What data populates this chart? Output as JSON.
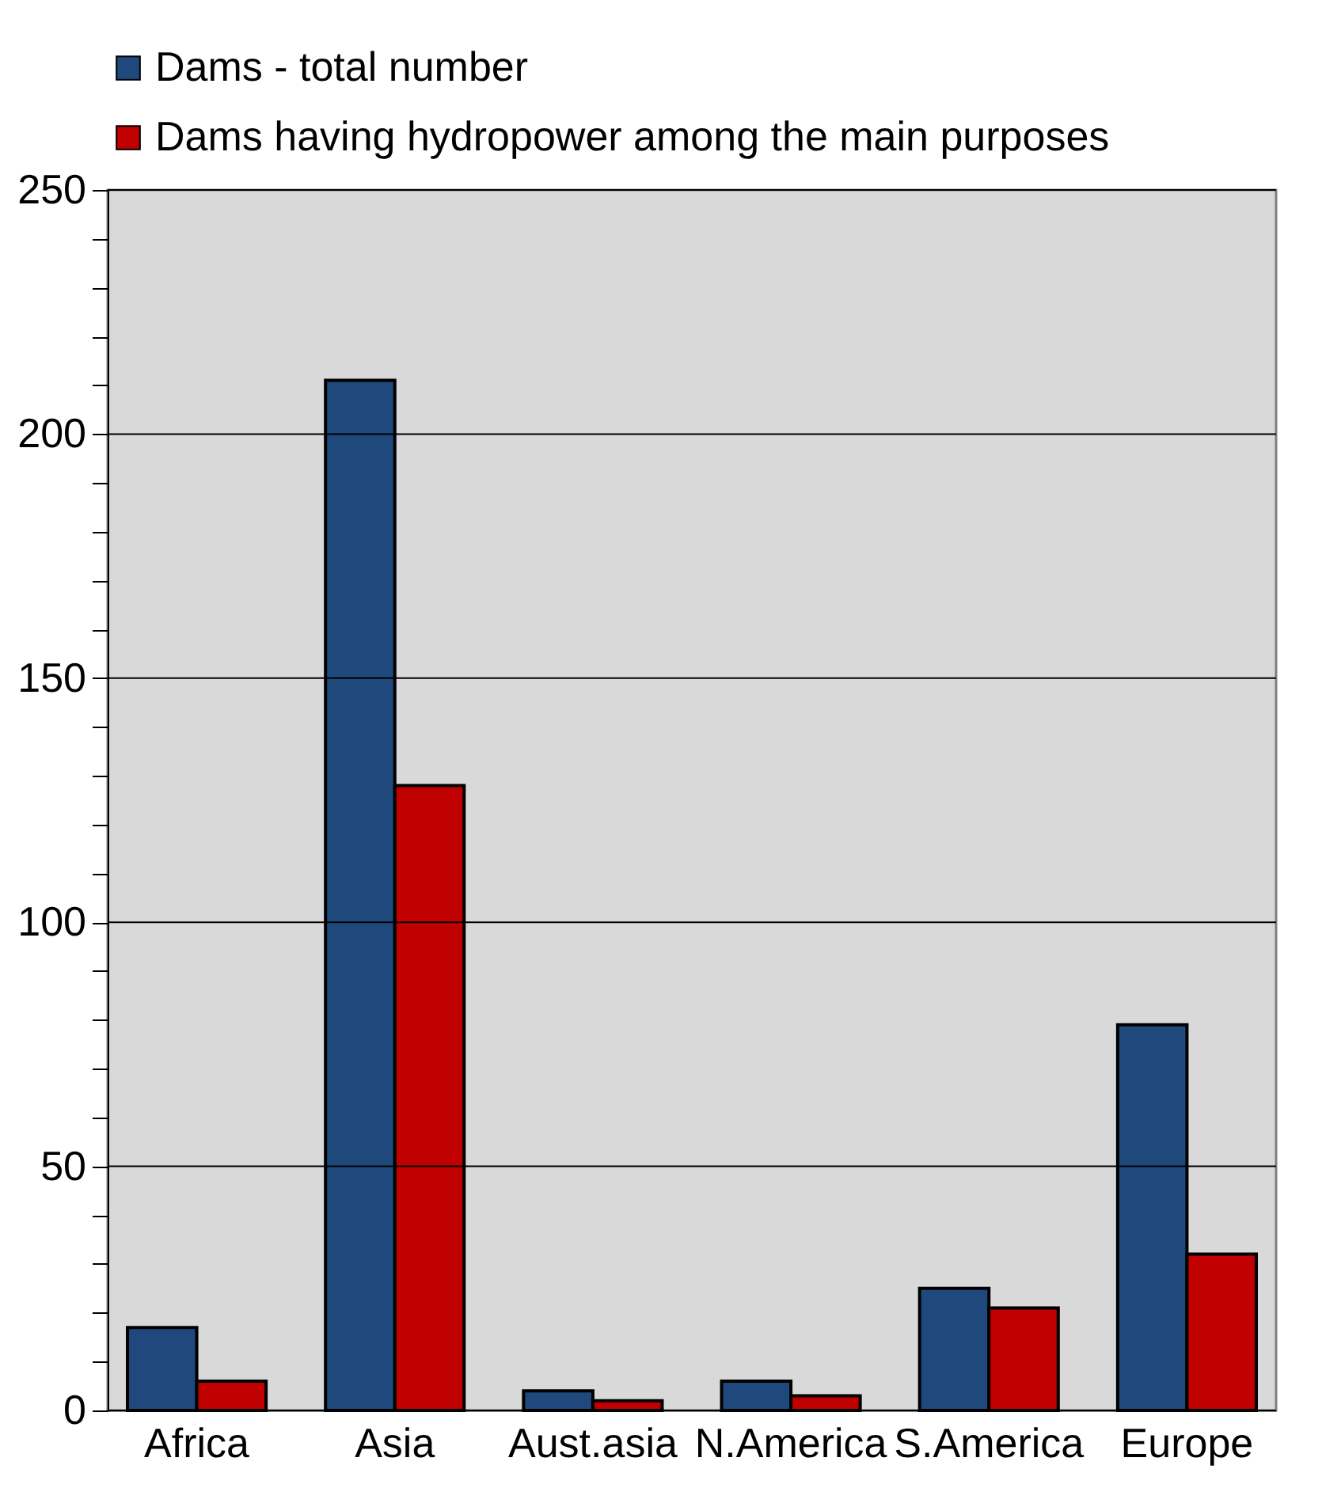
{
  "chart_data": {
    "type": "bar",
    "categories": [
      "Africa",
      "Asia",
      "Aust.asia",
      "N.America",
      "S.America",
      "Europe"
    ],
    "series": [
      {
        "name": "Dams - total number",
        "color": "#1f497d",
        "values": [
          17,
          211,
          4,
          6,
          25,
          79
        ]
      },
      {
        "name": "Dams having hydropower among the main purposes",
        "color": "#c00000",
        "values": [
          6,
          128,
          2,
          3,
          21,
          32
        ]
      }
    ],
    "ylim": [
      0,
      250
    ],
    "yticks": [
      0,
      {
        "value": 10,
        "label": null
      },
      {
        "value": 20,
        "label": null
      },
      {
        "value": 30,
        "label": null
      },
      {
        "value": 40,
        "label": null
      },
      50,
      {
        "value": 60,
        "label": null
      },
      {
        "value": 70,
        "label": null
      },
      {
        "value": 80,
        "label": null
      },
      {
        "value": 90,
        "label": null
      },
      100,
      {
        "value": 110,
        "label": null
      },
      {
        "value": 120,
        "label": null
      },
      {
        "value": 130,
        "label": null
      },
      {
        "value": 140,
        "label": null
      },
      150,
      {
        "value": 160,
        "label": null
      },
      {
        "value": 170,
        "label": null
      },
      {
        "value": 180,
        "label": null
      },
      {
        "value": 190,
        "label": null
      },
      200,
      {
        "value": 210,
        "label": null
      },
      {
        "value": 220,
        "label": null
      },
      {
        "value": 230,
        "label": null
      },
      {
        "value": 240,
        "label": null
      },
      250
    ],
    "grid": "y",
    "legend": "top left"
  }
}
